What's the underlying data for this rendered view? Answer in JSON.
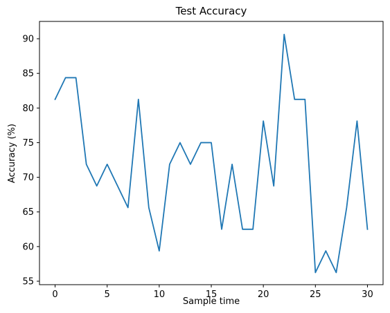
{
  "chart_data": {
    "type": "line",
    "title": "Test Accuracy",
    "xlabel": "Sample time",
    "ylabel": "Accuracy (%)",
    "xlim": [
      -1.5,
      31.5
    ],
    "ylim": [
      54.5,
      92.5
    ],
    "xticks": [
      0,
      5,
      10,
      15,
      20,
      25,
      30
    ],
    "yticks": [
      55,
      60,
      65,
      70,
      75,
      80,
      85,
      90
    ],
    "grid": false,
    "series": [
      {
        "color": "#1f77b4",
        "x": [
          0,
          1,
          2,
          3,
          4,
          5,
          6,
          7,
          8,
          9,
          10,
          11,
          12,
          13,
          14,
          15,
          16,
          17,
          18,
          19,
          20,
          21,
          22,
          23,
          24,
          25,
          26,
          27,
          28,
          29,
          30
        ],
        "values": [
          81.25,
          84.375,
          84.375,
          71.875,
          68.75,
          71.875,
          68.75,
          65.625,
          81.25,
          65.625,
          59.375,
          71.875,
          75.0,
          71.875,
          75.0,
          75.0,
          62.5,
          71.875,
          62.5,
          62.5,
          78.125,
          68.75,
          90.625,
          81.25,
          81.25,
          56.25,
          59.375,
          56.25,
          65.625,
          78.125,
          62.5
        ]
      }
    ]
  }
}
